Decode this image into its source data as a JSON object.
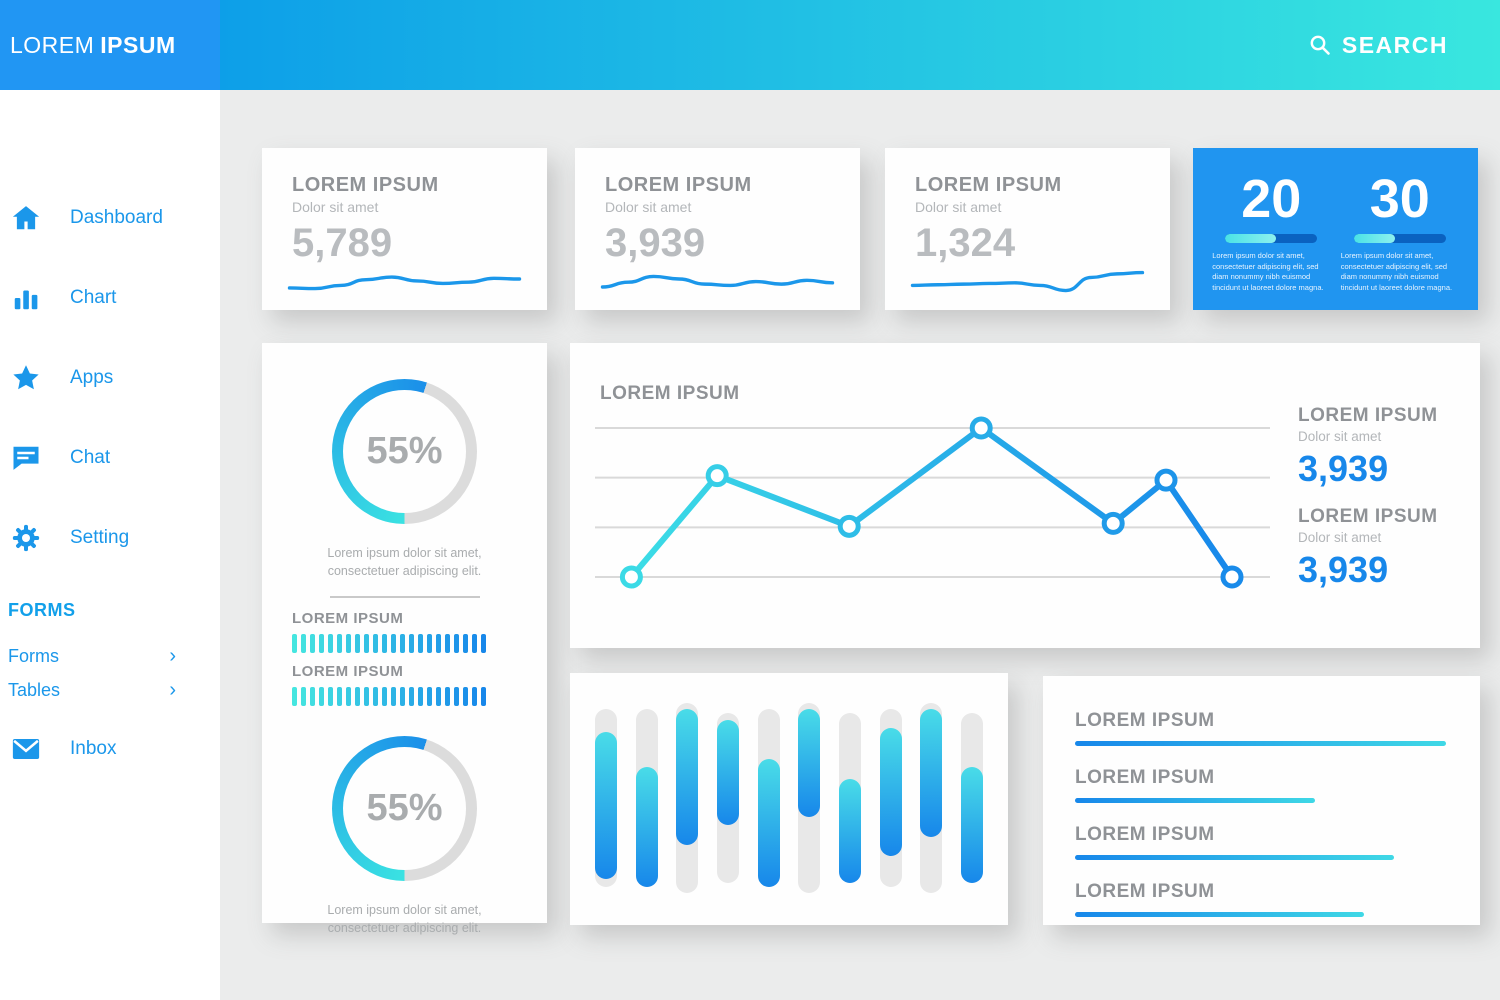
{
  "brand": {
    "logo_primary": "LOREM",
    "logo_secondary": "IPSUM"
  },
  "topbar": {
    "search_label": "SEARCH"
  },
  "sidebar": {
    "items": [
      {
        "label": "Dashboard",
        "icon": "home-icon"
      },
      {
        "label": "Chart",
        "icon": "bar-chart-icon"
      },
      {
        "label": "Apps",
        "icon": "star-icon"
      },
      {
        "label": "Chat",
        "icon": "chat-icon"
      },
      {
        "label": "Setting",
        "icon": "gear-icon"
      }
    ],
    "section_heading": "FORMS",
    "links": [
      {
        "label": "Forms"
      },
      {
        "label": "Tables"
      }
    ],
    "inbox": {
      "label": "Inbox",
      "icon": "envelope-icon"
    }
  },
  "stat_cards": [
    {
      "title": "LOREM IPSUM",
      "subtitle": "Dolor sit amet",
      "value": "5,789"
    },
    {
      "title": "LOREM IPSUM",
      "subtitle": "Dolor sit amet",
      "value": "3,939"
    },
    {
      "title": "LOREM IPSUM",
      "subtitle": "Dolor sit amet",
      "value": "1,324"
    }
  ],
  "highlight_card": {
    "stats": [
      {
        "value": "20",
        "description": "Lorem ipsum dolor sit amet, consectetuer adipiscing elit, sed diam nonummy nibh euismod tincidunt ut laoreet dolore magna."
      },
      {
        "value": "30",
        "description": "Lorem ipsum dolor sit amet, consectetuer adipiscing elit, sed diam nonummy nibh euismod tincidunt ut laoreet dolore magna."
      }
    ]
  },
  "gauge_card": {
    "top": {
      "percent_label": "55%",
      "caption": "Lorem ipsum dolor sit amet, consectetuer adipiscing elit."
    },
    "tick_groups": [
      {
        "label": "LOREM IPSUM"
      },
      {
        "label": "LOREM IPSUM"
      }
    ],
    "bottom": {
      "percent_label": "55%",
      "caption": "Lorem ipsum dolor sit amet, consectetuer adipiscing elit."
    }
  },
  "line_card": {
    "title": "LOREM IPSUM",
    "stats": [
      {
        "title": "LOREM IPSUM",
        "subtitle": "Dolor sit amet",
        "value": "3,939"
      },
      {
        "title": "LOREM IPSUM",
        "subtitle": "Dolor sit amet",
        "value": "3,939"
      }
    ]
  },
  "progress_card": {
    "rows": [
      {
        "label": "LOREM IPSUM",
        "percent": 99
      },
      {
        "label": "LOREM IPSUM",
        "percent": 64
      },
      {
        "label": "LOREM IPSUM",
        "percent": 85
      },
      {
        "label": "LOREM IPSUM",
        "percent": 77
      }
    ]
  },
  "colors": {
    "primary_blue": "#1b97ea",
    "cyan": "#3fe0e6",
    "sidebar_header_blue": "#2196f3",
    "topbar_gradient_start": "#0d9fe8",
    "topbar_gradient_end": "#39e7df",
    "highlight_card_bg": "#2095f0",
    "title_gray": "#8f9296",
    "muted_gray": "#b3b6b9",
    "value_gray": "#b9bcbf"
  },
  "chart_data": [
    {
      "name": "sparkline-1",
      "type": "line",
      "x": [
        0,
        1,
        2,
        3,
        4,
        5,
        6,
        7,
        8,
        9
      ],
      "values": [
        22,
        20,
        30,
        48,
        56,
        44,
        36,
        40,
        52,
        50
      ],
      "ylim": [
        0,
        100
      ]
    },
    {
      "name": "sparkline-2",
      "type": "line",
      "x": [
        0,
        1,
        2,
        3,
        4,
        5,
        6,
        7,
        8,
        9
      ],
      "values": [
        25,
        40,
        58,
        50,
        34,
        30,
        42,
        34,
        46,
        38
      ],
      "ylim": [
        0,
        100
      ]
    },
    {
      "name": "sparkline-3",
      "type": "line",
      "x": [
        0,
        1,
        2,
        3,
        4,
        5,
        6,
        7,
        8,
        9
      ],
      "values": [
        30,
        32,
        34,
        36,
        38,
        30,
        14,
        55,
        66,
        70
      ],
      "ylim": [
        0,
        100
      ]
    },
    {
      "name": "donut-top",
      "type": "pie",
      "value": 55,
      "label": "55%"
    },
    {
      "name": "donut-bottom",
      "type": "pie",
      "value": 55,
      "label": "55%"
    },
    {
      "name": "tick-bar-1",
      "type": "bar",
      "ticks": 22,
      "filled": 22
    },
    {
      "name": "tick-bar-2",
      "type": "bar",
      "ticks": 22,
      "filled": 22
    },
    {
      "name": "main-line",
      "type": "line",
      "x": [
        0.04,
        0.17,
        0.37,
        0.57,
        0.77,
        0.85,
        0.95
      ],
      "values": [
        0,
        68,
        34,
        100,
        36,
        65,
        0
      ],
      "ylim": [
        0,
        100
      ],
      "gridlines": 4,
      "grid": true,
      "legend": "none"
    },
    {
      "name": "column-chart",
      "type": "bar",
      "columns": [
        {
          "track": [
            4,
            96
          ],
          "bar": [
            16,
            92
          ]
        },
        {
          "track": [
            4,
            96
          ],
          "bar": [
            34,
            96
          ]
        },
        {
          "track": [
            1,
            99
          ],
          "bar": [
            4,
            74
          ]
        },
        {
          "track": [
            6,
            94
          ],
          "bar": [
            10,
            64
          ]
        },
        {
          "track": [
            4,
            96
          ],
          "bar": [
            30,
            96
          ]
        },
        {
          "track": [
            1,
            99
          ],
          "bar": [
            4,
            60
          ]
        },
        {
          "track": [
            6,
            94
          ],
          "bar": [
            40,
            94
          ]
        },
        {
          "track": [
            4,
            96
          ],
          "bar": [
            14,
            80
          ]
        },
        {
          "track": [
            1,
            99
          ],
          "bar": [
            4,
            70
          ]
        },
        {
          "track": [
            6,
            94
          ],
          "bar": [
            34,
            94
          ]
        }
      ]
    },
    {
      "name": "progress-lines",
      "type": "bar",
      "values": [
        99,
        64,
        85,
        77
      ]
    },
    {
      "name": "highlight-bars",
      "type": "bar",
      "values": [
        55,
        45
      ]
    }
  ]
}
